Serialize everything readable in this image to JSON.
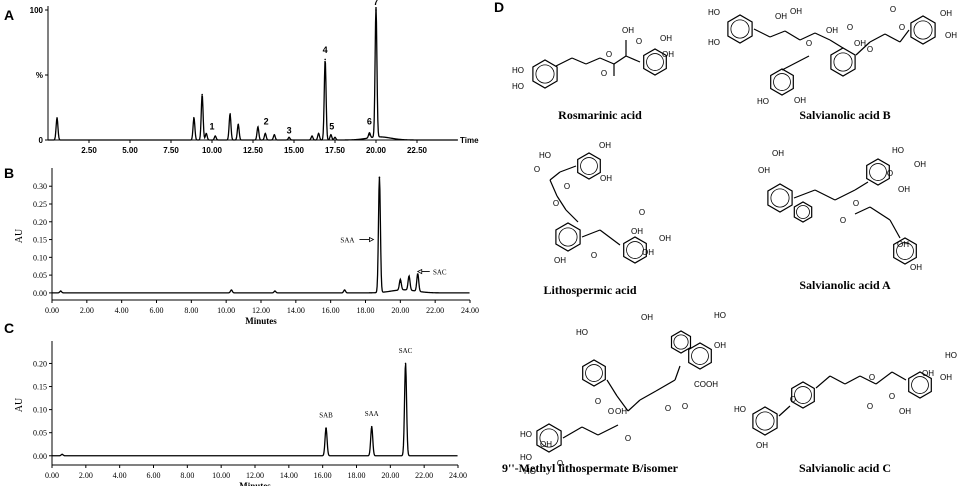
{
  "panels": {
    "a": "A",
    "b": "B",
    "c": "C",
    "d": "D"
  },
  "chart_data": [
    {
      "type": "line",
      "panel": "A",
      "xlabel": "Time",
      "ylabel": "%",
      "xlim": [
        0,
        25
      ],
      "ylim": [
        0,
        100
      ],
      "x_ticks": [
        "2.50",
        "5.00",
        "7.50",
        "10.00",
        "12.50",
        "15.00",
        "17.50",
        "20.00",
        "22.50"
      ],
      "y_ticks": [
        "0",
        "%",
        "100"
      ],
      "series": [
        {
          "peaks": [
            {
              "x": 0.55,
              "y": 17
            },
            {
              "x": 8.9,
              "y": 17
            },
            {
              "x": 9.4,
              "y": 35
            },
            {
              "x": 9.65,
              "y": 5
            },
            {
              "x": 10.2,
              "y": 3
            },
            {
              "x": 11.1,
              "y": 20
            },
            {
              "x": 11.6,
              "y": 12
            },
            {
              "x": 12.8,
              "y": 10
            },
            {
              "x": 13.25,
              "y": 5
            },
            {
              "x": 13.8,
              "y": 4
            },
            {
              "x": 14.7,
              "y": 2
            },
            {
              "x": 16.1,
              "y": 3
            },
            {
              "x": 16.5,
              "y": 5
            },
            {
              "x": 16.9,
              "y": 62
            },
            {
              "x": 17.25,
              "y": 4
            },
            {
              "x": 17.5,
              "y": 2
            },
            {
              "x": 19.6,
              "y": 4
            },
            {
              "x": 20.0,
              "y": 100
            }
          ]
        }
      ],
      "annotations": [
        {
          "text": "1",
          "x": 10.0,
          "y": 8
        },
        {
          "text": "2",
          "x": 13.3,
          "y": 12
        },
        {
          "text": "3",
          "x": 14.7,
          "y": 5
        },
        {
          "text": "4",
          "x": 16.9,
          "y": 67
        },
        {
          "text": "5",
          "x": 17.3,
          "y": 8
        },
        {
          "text": "6",
          "x": 19.6,
          "y": 12
        },
        {
          "text": "7",
          "x": 20.0,
          "y": 104
        }
      ]
    },
    {
      "type": "line",
      "panel": "B",
      "xlabel": "Minutes",
      "ylabel": "AU",
      "xlim": [
        0,
        24
      ],
      "ylim": [
        -0.02,
        0.34
      ],
      "x_ticks": [
        "0.00",
        "2.00",
        "4.00",
        "6.00",
        "8.00",
        "10.00",
        "12.00",
        "14.00",
        "16.00",
        "18.00",
        "20.00",
        "22.00",
        "24.00"
      ],
      "y_ticks": [
        "0.00",
        "0.05",
        "0.10",
        "0.15",
        "0.20",
        "0.25",
        "0.30"
      ],
      "series": [
        {
          "peaks": [
            {
              "x": 0.5,
              "y": 0.005
            },
            {
              "x": 10.3,
              "y": 0.008
            },
            {
              "x": 12.8,
              "y": 0.005
            },
            {
              "x": 16.8,
              "y": 0.008
            },
            {
              "x": 18.8,
              "y": 0.325
            },
            {
              "x": 20.0,
              "y": 0.03
            },
            {
              "x": 20.5,
              "y": 0.04
            },
            {
              "x": 21.0,
              "y": 0.05
            }
          ]
        }
      ],
      "annotations": [
        {
          "text": "SAA",
          "x": 18.8,
          "y": 0.15
        },
        {
          "text": "SAC",
          "x": 21.0,
          "y": 0.06
        }
      ]
    },
    {
      "type": "line",
      "panel": "C",
      "xlabel": "Minutes",
      "ylabel": "AU",
      "xlim": [
        0,
        24
      ],
      "ylim": [
        -0.02,
        0.24
      ],
      "x_ticks": [
        "0.00",
        "2.00",
        "4.00",
        "6.00",
        "8.00",
        "10.00",
        "12.00",
        "14.00",
        "16.00",
        "18.00",
        "20.00",
        "22.00",
        "24.00"
      ],
      "y_ticks": [
        "0.00",
        "0.05",
        "0.10",
        "0.15",
        "0.20"
      ],
      "series": [
        {
          "peaks": [
            {
              "x": 0.6,
              "y": 0.003
            },
            {
              "x": 16.2,
              "y": 0.06
            },
            {
              "x": 18.9,
              "y": 0.063
            },
            {
              "x": 20.9,
              "y": 0.2
            }
          ]
        }
      ],
      "annotations": [
        {
          "text": "SAB",
          "x": 16.2,
          "y": 0.07
        },
        {
          "text": "SAA",
          "x": 18.9,
          "y": 0.073
        },
        {
          "text": "SAC",
          "x": 20.9,
          "y": 0.21
        }
      ]
    }
  ],
  "structures": {
    "rosmarinic": {
      "name": "Rosmarinic acid",
      "labels": [
        "HO",
        "HO",
        "OH",
        "OH",
        "O",
        "O",
        "OH",
        "O"
      ]
    },
    "salvianolic_b": {
      "name": "Salvianolic acid B",
      "labels": [
        "HO",
        "HO",
        "OH",
        "OH",
        "O",
        "OH",
        "O",
        "O",
        "O",
        "OH",
        "OH",
        "OH",
        "O",
        "HO",
        "OH"
      ]
    },
    "lithospermic": {
      "name": "Lithospermic acid",
      "labels": [
        "O",
        "HO",
        "OH",
        "OH",
        "O",
        "O",
        "OH",
        "O",
        "OH",
        "OH",
        "O",
        "OH"
      ]
    },
    "salvianolic_a": {
      "name": "Salvianolic acid A",
      "labels": [
        "OH",
        "OH",
        "HO",
        "OH",
        "O",
        "O",
        "OH",
        "O",
        "OH",
        "OH"
      ]
    },
    "methyl_lithospermate": {
      "name": "9''-Methyl lithospermate B/isomer",
      "labels": [
        "OH",
        "OH",
        "HO",
        "OH",
        "COOH",
        "O",
        "HO",
        "HO",
        "O",
        "OH",
        "O",
        "HO",
        "O",
        "O",
        "O",
        "HO"
      ]
    },
    "salvianolic_c": {
      "name": "Salvianolic acid C",
      "labels": [
        "HO",
        "OH",
        "O",
        "O",
        "O",
        "OH",
        "O",
        "OH",
        "OH",
        "HO"
      ]
    }
  }
}
